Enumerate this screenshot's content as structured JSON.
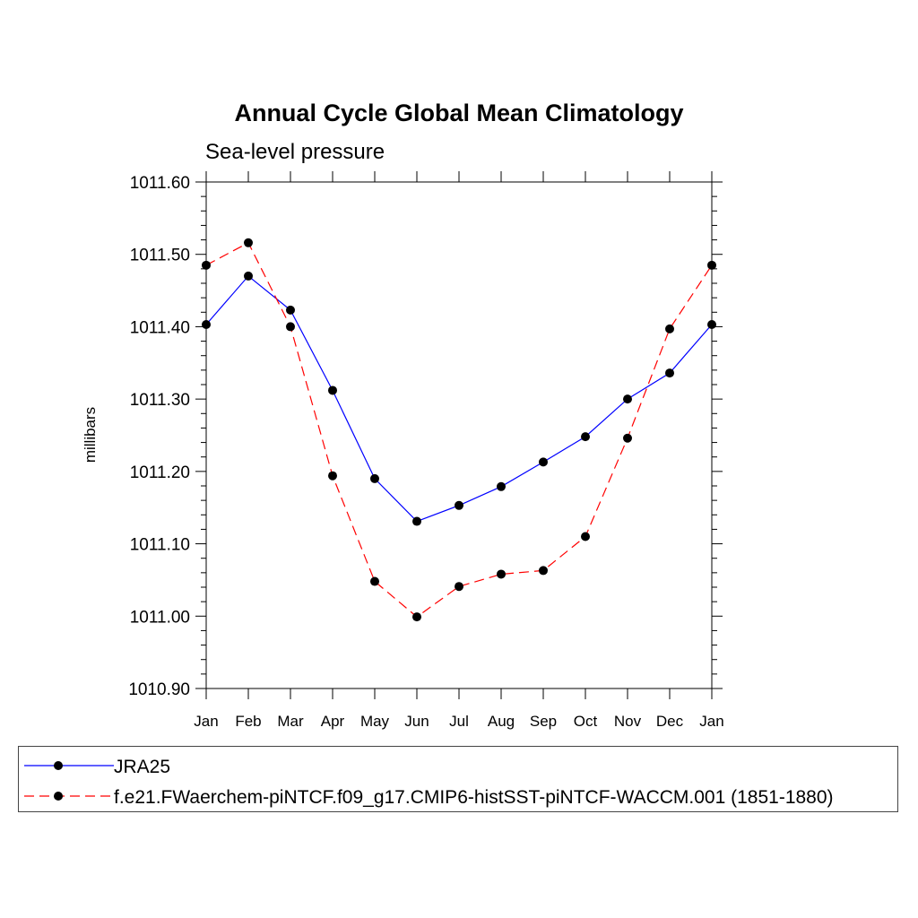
{
  "chart_data": {
    "type": "line",
    "title": "Annual Cycle Global Mean Climatology",
    "subtitle": "Sea-level pressure",
    "xlabel": "",
    "ylabel": "millibars",
    "categories": [
      "Jan",
      "Feb",
      "Mar",
      "Apr",
      "May",
      "Jun",
      "Jul",
      "Aug",
      "Sep",
      "Oct",
      "Nov",
      "Dec",
      "Jan"
    ],
    "ylim": [
      1010.9,
      1011.6
    ],
    "yticks": [
      "1010.90",
      "1011.00",
      "1011.10",
      "1011.20",
      "1011.30",
      "1011.40",
      "1011.50",
      "1011.60"
    ],
    "ytick_values": [
      1010.9,
      1011.0,
      1011.1,
      1011.2,
      1011.3,
      1011.4,
      1011.5,
      1011.6
    ],
    "series": [
      {
        "name": "JRA25",
        "color": "#0000ff",
        "dash": "solid",
        "values": [
          1011.403,
          1011.47,
          1011.423,
          1011.312,
          1011.19,
          1011.131,
          1011.153,
          1011.179,
          1011.213,
          1011.248,
          1011.3,
          1011.336,
          1011.403
        ]
      },
      {
        "name": "f.e21.FWaerchem-piNTCF.f09_g17.CMIP6-histSST-piNTCF-WACCM.001 (1851-1880)",
        "color": "#ff0000",
        "dash": "dashed",
        "values": [
          1011.485,
          1011.516,
          1011.4,
          1011.194,
          1011.048,
          1010.999,
          1011.041,
          1011.058,
          1011.063,
          1011.11,
          1011.246,
          1011.397,
          1011.485
        ]
      }
    ],
    "legend_position": "bottom"
  }
}
